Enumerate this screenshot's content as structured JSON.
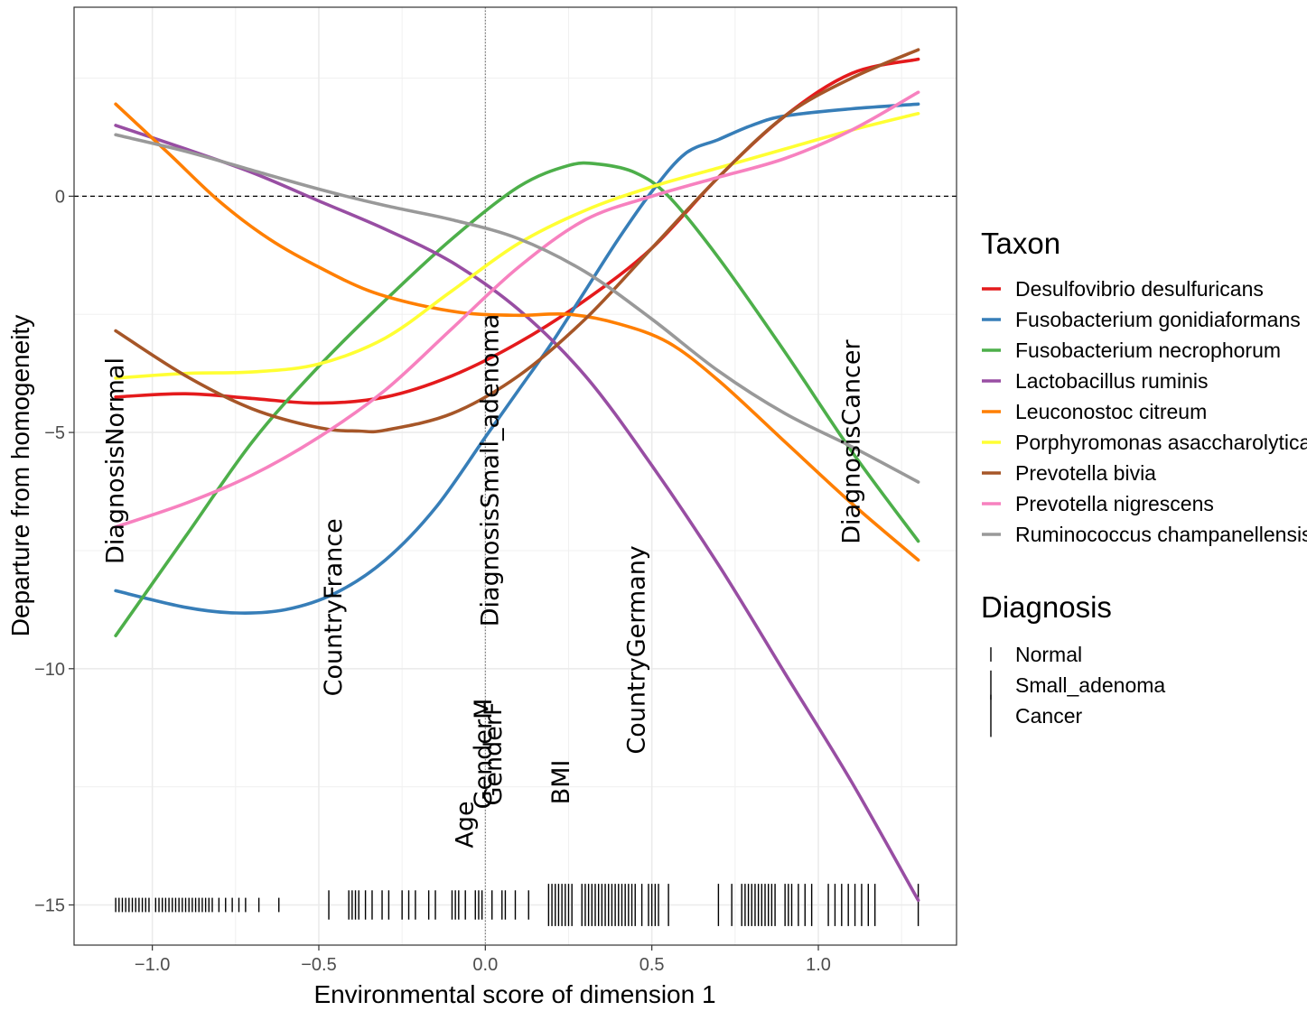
{
  "chart_data": {
    "type": "line",
    "title": "",
    "xlabel": "Environmental score of dimension 1",
    "ylabel": "Departure from homogeneity",
    "xlim": [
      -1.235,
      1.415
    ],
    "ylim": [
      -15.85,
      4.0
    ],
    "x_ticks": [
      {
        "value": -1.0,
        "label": "−1.0"
      },
      {
        "value": -0.5,
        "label": "−0.5"
      },
      {
        "value": 0.0,
        "label": "0.0"
      },
      {
        "value": 0.5,
        "label": "0.5"
      },
      {
        "value": 1.0,
        "label": "1.0"
      }
    ],
    "y_ticks": [
      {
        "value": 0,
        "label": "0"
      },
      {
        "value": -5,
        "label": "−5"
      },
      {
        "value": -10,
        "label": "−10"
      },
      {
        "value": -15,
        "label": "−15"
      }
    ],
    "grid": true,
    "reference_lines": {
      "horizontal_dashed": 0,
      "vertical_dotted": 0
    },
    "legend_position": "right",
    "legend_taxon_title": "Taxon",
    "legend_diagnosis_title": "Diagnosis",
    "series": [
      {
        "name": "Desulfovibrio desulfuricans",
        "color": "#E41A1C",
        "x": [
          -1.11,
          -0.9,
          -0.7,
          -0.5,
          -0.3,
          -0.1,
          0.1,
          0.3,
          0.5,
          0.7,
          0.9,
          1.1,
          1.3
        ],
        "y": [
          -4.25,
          -4.18,
          -4.28,
          -4.38,
          -4.25,
          -3.8,
          -3.1,
          -2.2,
          -1.1,
          0.4,
          1.7,
          2.6,
          2.9
        ]
      },
      {
        "name": "Fusobacterium gonidiaformans",
        "color": "#377EB8",
        "x": [
          -1.11,
          -0.9,
          -0.75,
          -0.6,
          -0.45,
          -0.3,
          -0.15,
          0.0,
          0.1,
          0.2,
          0.3,
          0.4,
          0.5,
          0.6,
          0.7,
          0.8,
          0.9,
          1.1,
          1.3
        ],
        "y": [
          -8.35,
          -8.7,
          -8.82,
          -8.75,
          -8.4,
          -7.7,
          -6.6,
          -5.1,
          -4.1,
          -3.1,
          -2.0,
          -0.9,
          0.1,
          0.9,
          1.2,
          1.5,
          1.7,
          1.85,
          1.95
        ]
      },
      {
        "name": "Fusobacterium necrophorum",
        "color": "#4DAF4A",
        "x": [
          -1.11,
          -0.9,
          -0.7,
          -0.5,
          -0.3,
          -0.1,
          0.1,
          0.25,
          0.34,
          0.45,
          0.55,
          0.7,
          0.9,
          1.1,
          1.3
        ],
        "y": [
          -9.3,
          -7.2,
          -5.2,
          -3.6,
          -2.2,
          -0.9,
          0.2,
          0.65,
          0.68,
          0.5,
          0.0,
          -1.3,
          -3.3,
          -5.4,
          -7.3
        ]
      },
      {
        "name": "Lactobacillus ruminis",
        "color": "#984EA3",
        "x": [
          -1.11,
          -0.9,
          -0.7,
          -0.5,
          -0.3,
          -0.1,
          0.1,
          0.3,
          0.5,
          0.7,
          0.9,
          1.1,
          1.3
        ],
        "y": [
          1.5,
          1.0,
          0.5,
          -0.1,
          -0.7,
          -1.4,
          -2.4,
          -3.8,
          -5.7,
          -7.8,
          -10.1,
          -12.4,
          -14.9
        ]
      },
      {
        "name": "Leuconostoc citreum",
        "color": "#FF7F00",
        "x": [
          -1.11,
          -0.95,
          -0.8,
          -0.65,
          -0.5,
          -0.35,
          -0.2,
          -0.05,
          0.1,
          0.25,
          0.4,
          0.55,
          0.7,
          0.9,
          1.1,
          1.3
        ],
        "y": [
          1.95,
          0.9,
          -0.1,
          -0.9,
          -1.5,
          -2.0,
          -2.3,
          -2.48,
          -2.52,
          -2.5,
          -2.7,
          -3.1,
          -3.9,
          -5.2,
          -6.5,
          -7.7
        ]
      },
      {
        "name": "Porphyromonas asaccharolytica",
        "color": "#FFFF33",
        "x": [
          -1.11,
          -0.9,
          -0.7,
          -0.5,
          -0.3,
          -0.1,
          0.1,
          0.3,
          0.5,
          0.7,
          0.9,
          1.1,
          1.3
        ],
        "y": [
          -3.85,
          -3.75,
          -3.72,
          -3.55,
          -3.0,
          -2.0,
          -1.0,
          -0.3,
          0.2,
          0.6,
          1.0,
          1.4,
          1.75
        ]
      },
      {
        "name": "Prevotella bivia",
        "color": "#A65628",
        "x": [
          -1.11,
          -0.9,
          -0.7,
          -0.5,
          -0.38,
          -0.3,
          -0.1,
          0.1,
          0.3,
          0.5,
          0.7,
          0.9,
          1.1,
          1.3
        ],
        "y": [
          -2.85,
          -3.8,
          -4.5,
          -4.9,
          -4.97,
          -4.95,
          -4.6,
          -3.8,
          -2.6,
          -1.1,
          0.4,
          1.7,
          2.5,
          3.1
        ]
      },
      {
        "name": "Prevotella nigrescens",
        "color": "#F781BF",
        "x": [
          -1.11,
          -0.9,
          -0.7,
          -0.5,
          -0.3,
          -0.1,
          0.1,
          0.3,
          0.5,
          0.7,
          0.9,
          1.1,
          1.3
        ],
        "y": [
          -7.0,
          -6.5,
          -5.9,
          -5.1,
          -4.1,
          -2.8,
          -1.5,
          -0.5,
          0.0,
          0.4,
          0.8,
          1.4,
          2.2
        ]
      },
      {
        "name": "Ruminococcus champanellensis",
        "color": "#999999",
        "x": [
          -1.11,
          -0.9,
          -0.7,
          -0.5,
          -0.3,
          -0.1,
          0.1,
          0.3,
          0.5,
          0.7,
          0.9,
          1.1,
          1.3
        ],
        "y": [
          1.3,
          0.95,
          0.55,
          0.15,
          -0.2,
          -0.5,
          -0.9,
          -1.6,
          -2.6,
          -3.7,
          -4.6,
          -5.3,
          -6.05
        ]
      }
    ],
    "annotations": [
      {
        "text": "DiagnosisNormal",
        "x": -1.11,
        "y": -5.6
      },
      {
        "text": "CountryFrance",
        "x": -0.455,
        "y": -8.7
      },
      {
        "text": "DiagnosisSmall_adenoma",
        "x": 0.015,
        "y": -5.8
      },
      {
        "text": "GenderM",
        "x": -0.005,
        "y": -11.8
      },
      {
        "text": "GenderF",
        "x": 0.025,
        "y": -11.8
      },
      {
        "text": "BMI",
        "x": 0.228,
        "y": -12.4
      },
      {
        "text": "Age",
        "x": -0.06,
        "y": -13.3
      },
      {
        "text": "CountryGermany",
        "x": 0.455,
        "y": -9.6
      },
      {
        "text": "DiagnosisCancer",
        "x": 1.1,
        "y": -5.2
      }
    ],
    "rug": {
      "y": -15,
      "groups": [
        {
          "name": "Normal",
          "length": 0.22,
          "x": [
            -1.11,
            -1.1,
            -1.09,
            -1.08,
            -1.07,
            -1.06,
            -1.05,
            -1.04,
            -1.03,
            -1.02,
            -1.01,
            -0.99,
            -0.98,
            -0.97,
            -0.96,
            -0.95,
            -0.94,
            -0.93,
            -0.92,
            -0.91,
            -0.9,
            -0.89,
            -0.88,
            -0.87,
            -0.86,
            -0.85,
            -0.84,
            -0.83,
            -0.82,
            -0.8,
            -0.78,
            -0.76,
            -0.74,
            -0.72,
            -0.68,
            -0.62
          ]
        },
        {
          "name": "Small_adenoma",
          "length": 0.45,
          "x": [
            -0.47,
            -0.41,
            -0.4,
            -0.39,
            -0.38,
            -0.36,
            -0.34,
            -0.31,
            -0.29,
            -0.25,
            -0.23,
            -0.21,
            -0.17,
            -0.15,
            -0.1,
            -0.09,
            -0.08,
            -0.06,
            -0.03,
            -0.02,
            -0.01,
            0.02,
            0.05,
            0.06,
            0.09,
            0.13
          ]
        },
        {
          "name": "Cancer",
          "length": 0.65,
          "x": [
            0.19,
            0.2,
            0.21,
            0.22,
            0.23,
            0.24,
            0.25,
            0.26,
            0.29,
            0.3,
            0.31,
            0.32,
            0.33,
            0.34,
            0.35,
            0.36,
            0.37,
            0.38,
            0.39,
            0.4,
            0.41,
            0.42,
            0.43,
            0.44,
            0.45,
            0.47,
            0.49,
            0.5,
            0.51,
            0.52,
            0.55,
            0.7,
            0.74,
            0.77,
            0.78,
            0.79,
            0.8,
            0.81,
            0.82,
            0.83,
            0.84,
            0.85,
            0.86,
            0.87,
            0.9,
            0.91,
            0.92,
            0.94,
            0.96,
            0.98,
            1.03,
            1.05,
            1.07,
            1.09,
            1.11,
            1.13,
            1.15,
            1.17,
            1.3
          ]
        }
      ]
    }
  }
}
